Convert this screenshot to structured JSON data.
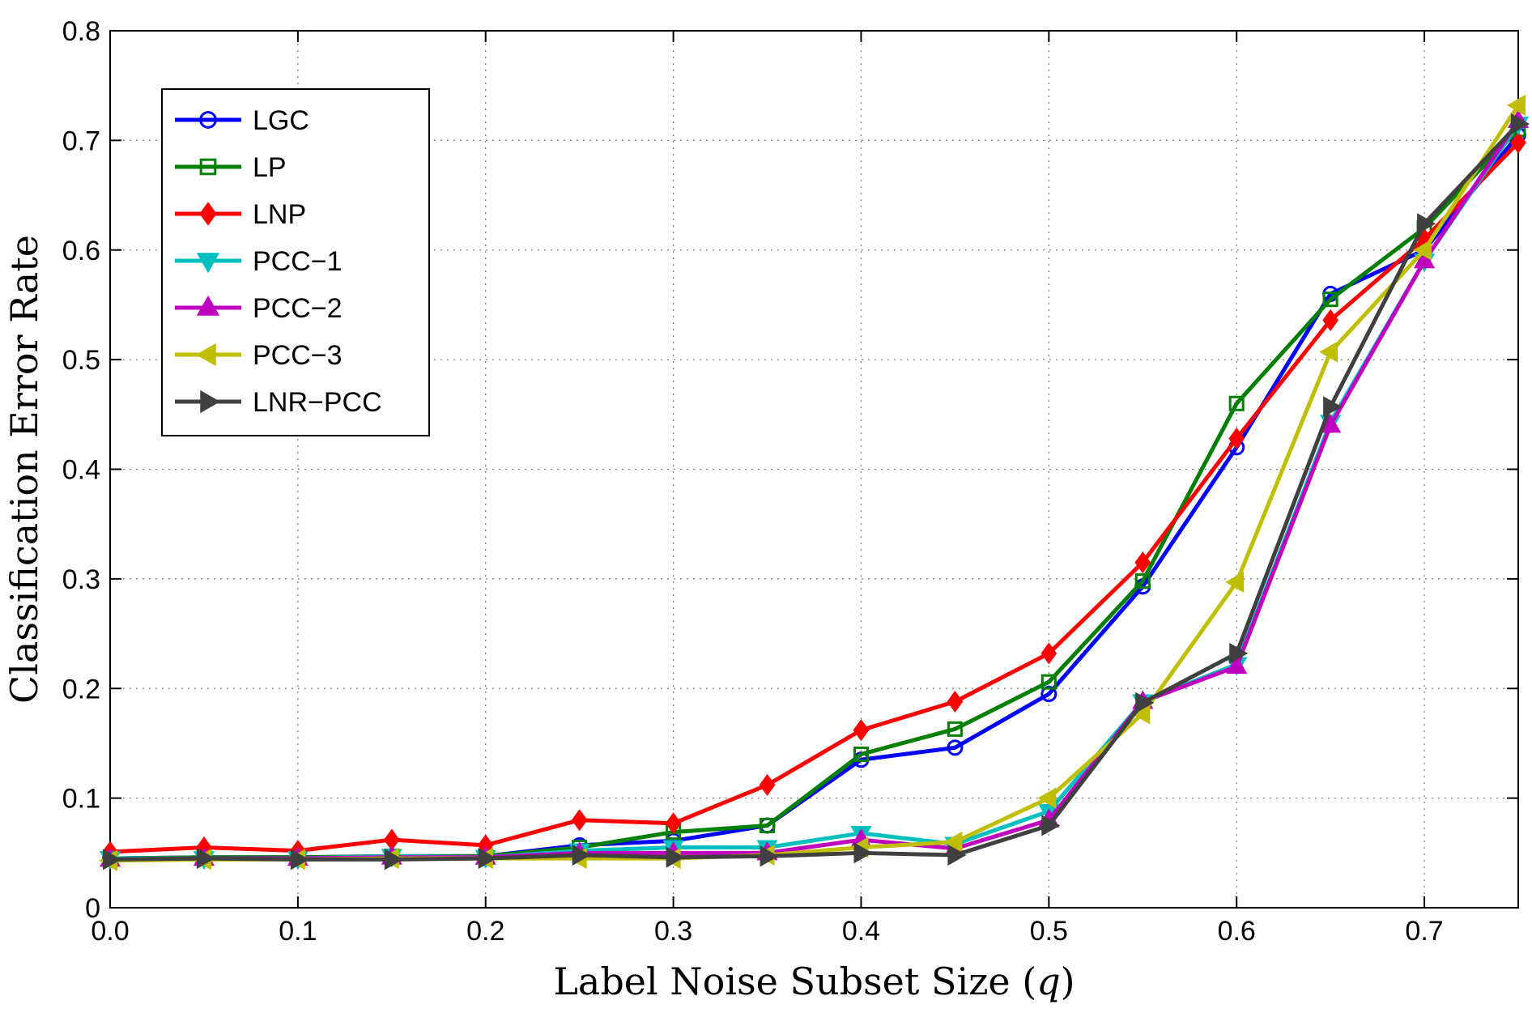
{
  "chart_data": {
    "type": "line",
    "xlabel": "Label Noise Subset Size (",
    "xlabel_var": "q",
    "xlabel_end": ")",
    "ylabel": "Classification Error Rate",
    "xlim": [
      0,
      0.75
    ],
    "ylim": [
      0,
      0.8
    ],
    "x_ticks": [
      0.0,
      0.1,
      0.2,
      0.3,
      0.4,
      0.5,
      0.6,
      0.7
    ],
    "x_tick_labels": [
      "0.0",
      "0.1",
      "0.2",
      "0.3",
      "0.4",
      "0.5",
      "0.6",
      "0.7"
    ],
    "y_ticks": [
      0,
      0.1,
      0.2,
      0.3,
      0.4,
      0.5,
      0.6,
      0.7,
      0.8
    ],
    "y_tick_labels": [
      "0",
      "0.1",
      "0.2",
      "0.3",
      "0.4",
      "0.5",
      "0.6",
      "0.7",
      "0.8"
    ],
    "grid": true,
    "legend_position": "top-left",
    "x": [
      0.0,
      0.05,
      0.1,
      0.15,
      0.2,
      0.25,
      0.3,
      0.35,
      0.4,
      0.45,
      0.5,
      0.55,
      0.6,
      0.65,
      0.7,
      0.75
    ],
    "series": [
      {
        "name": "LGC",
        "color": "#0000ff",
        "marker": "circle",
        "values": [
          0.045,
          0.046,
          0.046,
          0.047,
          0.047,
          0.057,
          0.061,
          0.075,
          0.135,
          0.146,
          0.195,
          0.293,
          0.42,
          0.56,
          0.6,
          0.705
        ]
      },
      {
        "name": "LP",
        "color": "#007f00",
        "marker": "square",
        "values": [
          0.045,
          0.046,
          0.046,
          0.047,
          0.047,
          0.055,
          0.069,
          0.075,
          0.14,
          0.163,
          0.206,
          0.298,
          0.46,
          0.555,
          0.62,
          0.71
        ]
      },
      {
        "name": "LNP",
        "color": "#ff0000",
        "marker": "diamond",
        "values": [
          0.051,
          0.055,
          0.052,
          0.062,
          0.057,
          0.08,
          0.077,
          0.112,
          0.162,
          0.188,
          0.232,
          0.315,
          0.428,
          0.536,
          0.61,
          0.698
        ]
      },
      {
        "name": "PCC−1",
        "color": "#00bfbf",
        "marker": "triangle-down",
        "values": [
          0.045,
          0.045,
          0.045,
          0.047,
          0.046,
          0.052,
          0.055,
          0.055,
          0.068,
          0.058,
          0.088,
          0.188,
          0.222,
          0.443,
          0.59,
          0.715
        ]
      },
      {
        "name": "PCC−2",
        "color": "#bf00bf",
        "marker": "triangle-up",
        "values": [
          0.044,
          0.045,
          0.045,
          0.046,
          0.046,
          0.05,
          0.05,
          0.05,
          0.062,
          0.054,
          0.08,
          0.188,
          0.22,
          0.44,
          0.59,
          0.718
        ]
      },
      {
        "name": "PCC−3",
        "color": "#bfbf00",
        "marker": "triangle-left",
        "values": [
          0.043,
          0.044,
          0.044,
          0.045,
          0.045,
          0.045,
          0.045,
          0.048,
          0.055,
          0.06,
          0.1,
          0.177,
          0.297,
          0.507,
          0.6,
          0.732
        ]
      },
      {
        "name": "LNR−PCC",
        "color": "#404040",
        "marker": "triangle-right",
        "values": [
          0.044,
          0.045,
          0.044,
          0.044,
          0.045,
          0.048,
          0.046,
          0.047,
          0.05,
          0.048,
          0.075,
          0.187,
          0.232,
          0.457,
          0.624,
          0.715
        ]
      }
    ]
  }
}
